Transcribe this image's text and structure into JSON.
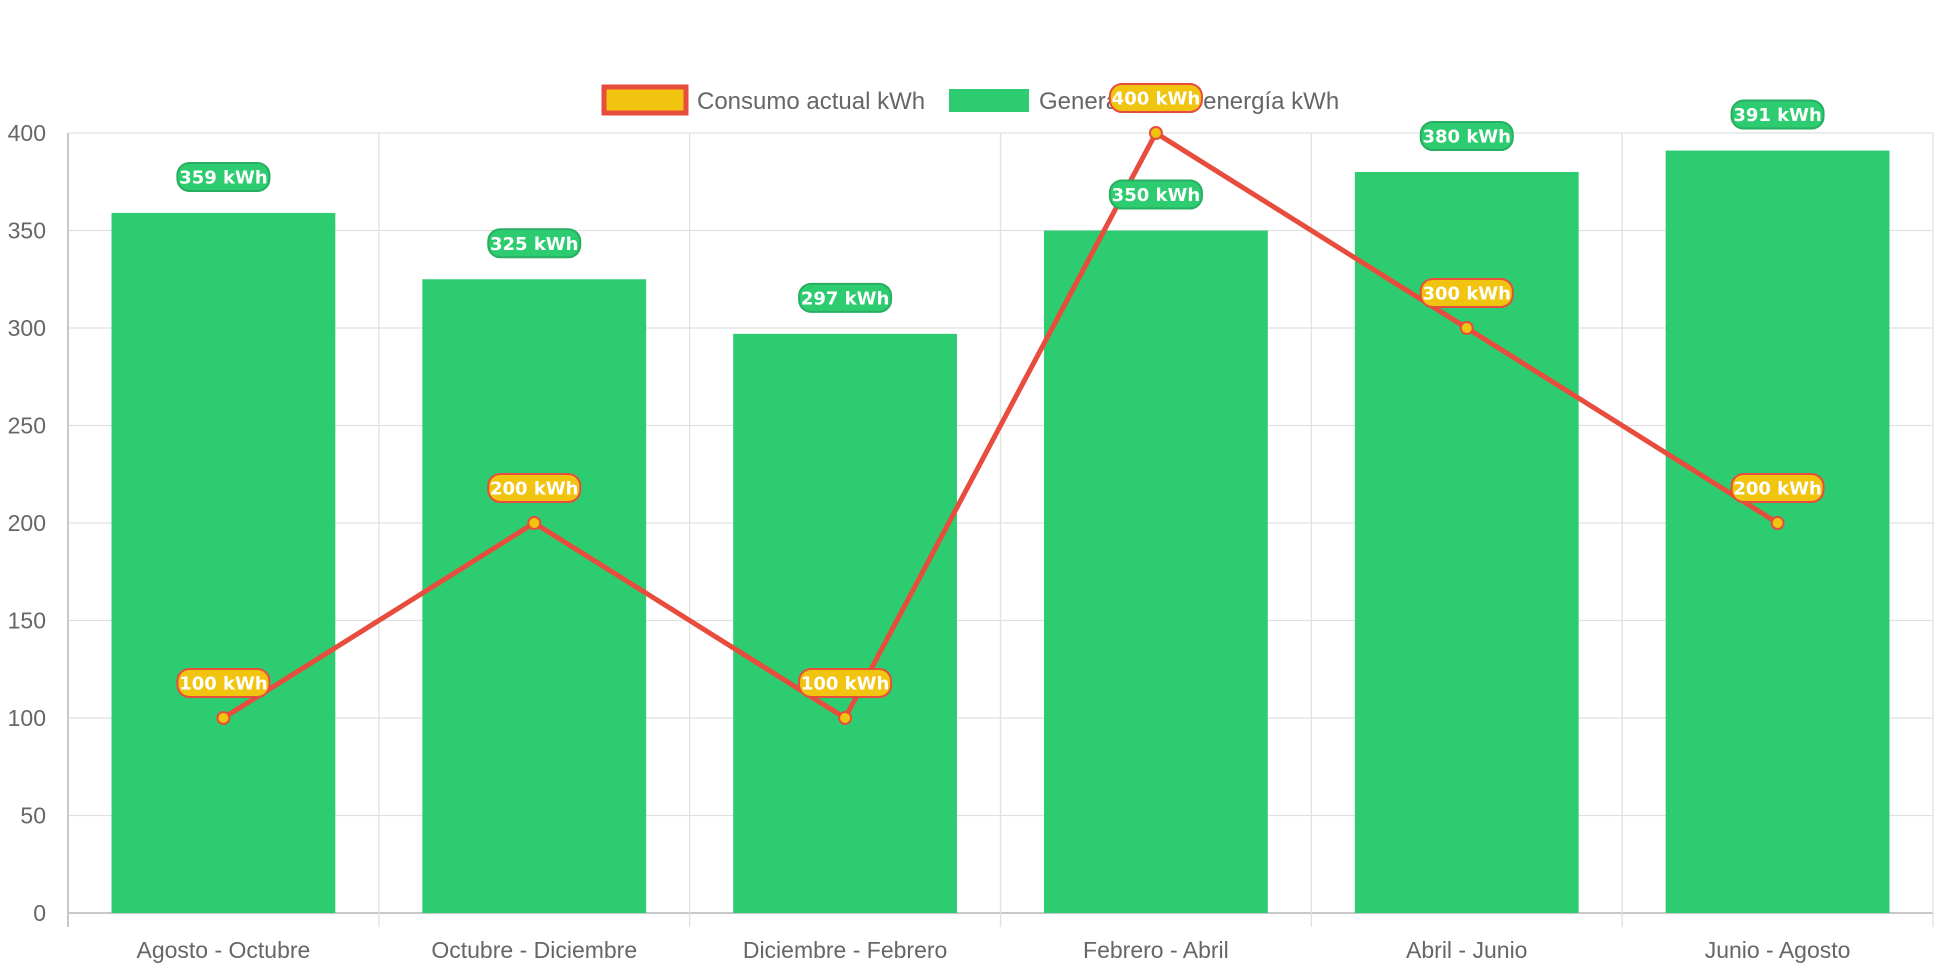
{
  "chart_data": {
    "type": "bar",
    "categories": [
      "Agosto - Octubre",
      "Octubre - Diciembre",
      "Diciembre - Febrero",
      "Febrero - Abril",
      "Abril - Junio",
      "Junio - Agosto"
    ],
    "ylim": [
      0,
      400
    ],
    "yticks": [
      "0",
      "50",
      "100",
      "150",
      "200",
      "250",
      "300",
      "350",
      "400"
    ],
    "grid": true,
    "legend_position": "top-center",
    "series": [
      {
        "name": "Consumo actual kWh",
        "type": "line",
        "values": [
          100,
          200,
          100,
          400,
          300,
          200
        ],
        "labels": [
          "100 kWh",
          "200 kWh",
          "100 kWh",
          "400 kWh",
          "300 kWh",
          "200 kWh"
        ],
        "line_color": "#e74c3c",
        "fill_color": "#f1c40f"
      },
      {
        "name": "Generación de energía kWh",
        "type": "bar",
        "values": [
          359,
          325,
          297,
          350,
          380,
          391
        ],
        "labels": [
          "359 kWh",
          "325 kWh",
          "297 kWh",
          "350 kWh",
          "380 kWh",
          "391 kWh"
        ],
        "color": "#2ecc71",
        "border_color": "#27ae60"
      }
    ]
  }
}
